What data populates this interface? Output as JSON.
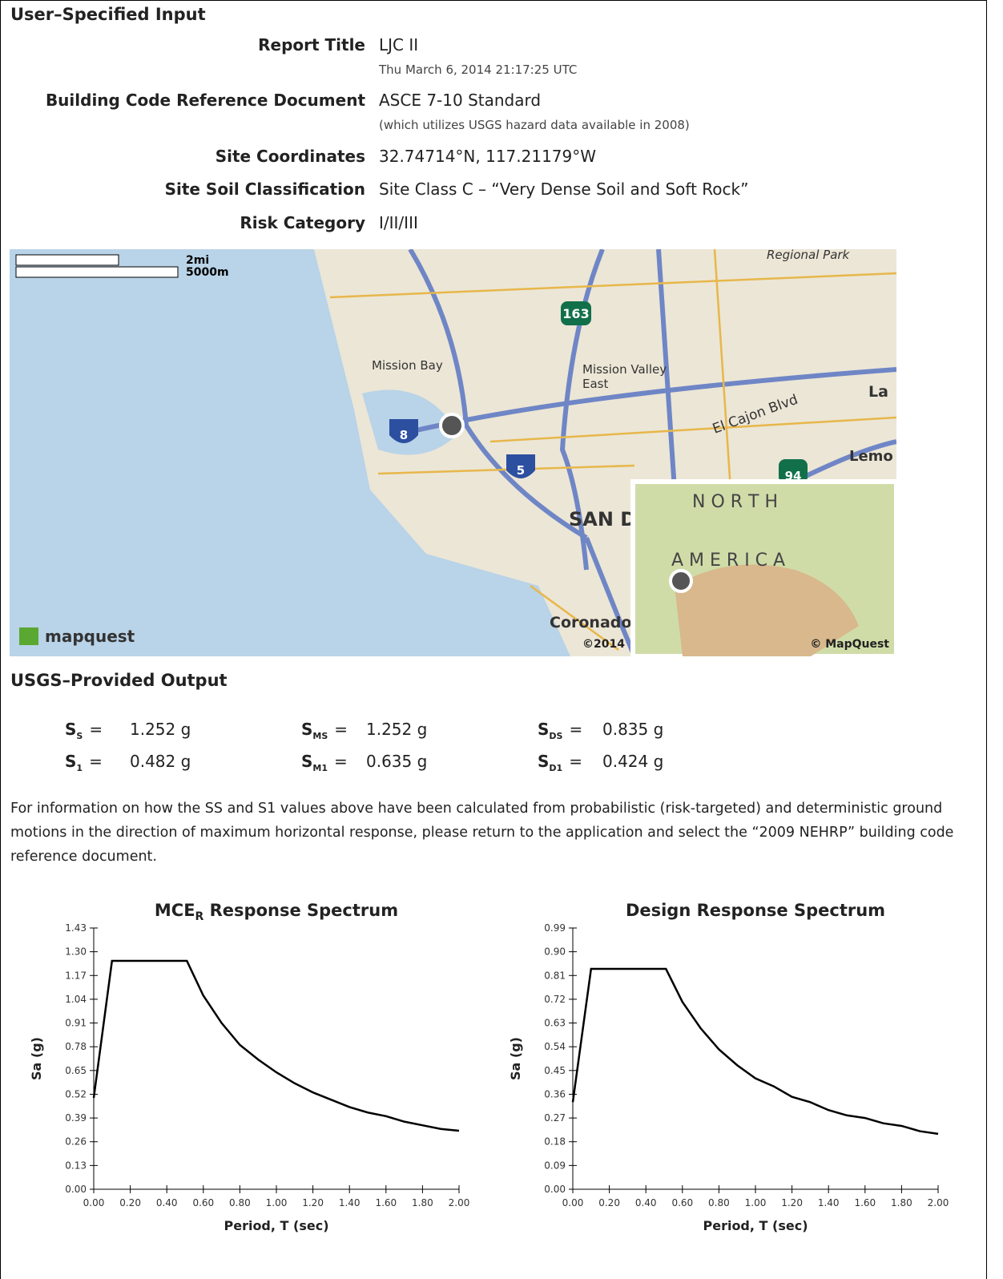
{
  "input": {
    "heading": "User–Specified Input",
    "rows": [
      {
        "label": "Report Title",
        "value": "LJC II",
        "note": "Thu March 6, 2014 21:17:25 UTC"
      },
      {
        "label": "Building Code Reference Document",
        "value": "ASCE 7-10 Standard",
        "note": "(which utilizes USGS hazard data available in 2008)"
      },
      {
        "label": "Site Coordinates",
        "value": "32.74714°N, 117.21179°W"
      },
      {
        "label": "Site Soil Classification",
        "value": "Site Class C – “Very Dense Soil and Soft Rock”"
      },
      {
        "label": "Risk Category",
        "value": "I/II/III"
      }
    ]
  },
  "map": {
    "scale": [
      "2mi",
      "5000m"
    ],
    "labels": [
      "Regional Park",
      "163",
      "Mission Bay",
      "Mission Valley",
      "East",
      "La",
      "El Cajon Blvd",
      "8",
      "5",
      "94",
      "Lemo",
      "SAN D",
      "Coronado",
      "©2014",
      "mapquest"
    ],
    "inset": {
      "labels": [
        "N O R T H",
        "A M E R I C A",
        "© MapQuest"
      ]
    }
  },
  "output": {
    "heading": "USGS–Provided Output",
    "sign": "=",
    "params": [
      {
        "symbol": "S",
        "sub": "S",
        "value": "1.252 g"
      },
      {
        "symbol": "S",
        "sub": "MS",
        "value": "1.252 g"
      },
      {
        "symbol": "S",
        "sub": "DS",
        "value": "0.835 g"
      },
      {
        "symbol": "S",
        "sub": "1",
        "value": "0.482 g"
      },
      {
        "symbol": "S",
        "sub": "M1",
        "value": "0.635 g"
      },
      {
        "symbol": "S",
        "sub": "D1",
        "value": "0.424 g"
      }
    ],
    "note": "For information on how the SS and S1 values above have been calculated from probabilistic (risk-targeted) and deterministic ground motions in the direction of maximum horizontal response, please return to the application and select the “2009 NEHRP” building code reference document."
  },
  "chart_data": [
    {
      "type": "line",
      "title": {
        "main": "MCE",
        "sub": "R",
        "rest": " Response Spectrum"
      },
      "x_label": "Period, T (sec)",
      "y_label": "Sa (g)",
      "color": "#000000",
      "x": [
        0,
        0.1,
        0.51,
        0.6,
        0.7,
        0.8,
        0.9,
        1.0,
        1.1,
        1.2,
        1.3,
        1.4,
        1.5,
        1.6,
        1.7,
        1.8,
        1.9,
        2.0
      ],
      "values": [
        0.5,
        1.25,
        1.25,
        1.06,
        0.91,
        0.79,
        0.71,
        0.64,
        0.58,
        0.53,
        0.49,
        0.45,
        0.42,
        0.4,
        0.37,
        0.35,
        0.33,
        0.32
      ],
      "xlim": [
        0,
        2
      ],
      "ylim": [
        0,
        1.43
      ],
      "xticks": [
        {
          "value": 0,
          "label": "0.00"
        },
        {
          "value": 0.2,
          "label": "0.20"
        },
        {
          "value": 0.4,
          "label": "0.40"
        },
        {
          "value": 0.6,
          "label": "0.60"
        },
        {
          "value": 0.8,
          "label": "0.80"
        },
        {
          "value": 1,
          "label": "1.00"
        },
        {
          "value": 1.2,
          "label": "1.20"
        },
        {
          "value": 1.4,
          "label": "1.40"
        },
        {
          "value": 1.6,
          "label": "1.60"
        },
        {
          "value": 1.8,
          "label": "1.80"
        },
        {
          "value": 2,
          "label": "2.00"
        }
      ],
      "yticks": [
        {
          "value": 0,
          "label": "0.00"
        },
        {
          "value": 0.13,
          "label": "0.13"
        },
        {
          "value": 0.26,
          "label": "0.26"
        },
        {
          "value": 0.39,
          "label": "0.39"
        },
        {
          "value": 0.52,
          "label": "0.52"
        },
        {
          "value": 0.65,
          "label": "0.65"
        },
        {
          "value": 0.78,
          "label": "0.78"
        },
        {
          "value": 0.91,
          "label": "0.91"
        },
        {
          "value": 1.04,
          "label": "1.04"
        },
        {
          "value": 1.17,
          "label": "1.17"
        },
        {
          "value": 1.3,
          "label": "1.30"
        },
        {
          "value": 1.43,
          "label": "1.43"
        }
      ]
    },
    {
      "type": "line",
      "title": {
        "main": "Design Response Spectrum"
      },
      "x_label": "Period, T (sec)",
      "y_label": "Sa (g)",
      "color": "#000000",
      "x": [
        0,
        0.1,
        0.51,
        0.6,
        0.7,
        0.8,
        0.9,
        1.0,
        1.1,
        1.2,
        1.3,
        1.4,
        1.5,
        1.6,
        1.7,
        1.8,
        1.9,
        2.0
      ],
      "values": [
        0.33,
        0.835,
        0.835,
        0.71,
        0.61,
        0.53,
        0.47,
        0.42,
        0.39,
        0.35,
        0.33,
        0.3,
        0.28,
        0.27,
        0.25,
        0.24,
        0.22,
        0.21
      ],
      "xlim": [
        0,
        2
      ],
      "ylim": [
        0,
        0.99
      ],
      "xticks": [
        {
          "value": 0,
          "label": "0.00"
        },
        {
          "value": 0.2,
          "label": "0.20"
        },
        {
          "value": 0.4,
          "label": "0.40"
        },
        {
          "value": 0.6,
          "label": "0.60"
        },
        {
          "value": 0.8,
          "label": "0.80"
        },
        {
          "value": 1,
          "label": "1.00"
        },
        {
          "value": 1.2,
          "label": "1.20"
        },
        {
          "value": 1.4,
          "label": "1.40"
        },
        {
          "value": 1.6,
          "label": "1.60"
        },
        {
          "value": 1.8,
          "label": "1.80"
        },
        {
          "value": 2,
          "label": "2.00"
        }
      ],
      "yticks": [
        {
          "value": 0,
          "label": "0.00"
        },
        {
          "value": 0.09,
          "label": "0.09"
        },
        {
          "value": 0.18,
          "label": "0.18"
        },
        {
          "value": 0.27,
          "label": "0.27"
        },
        {
          "value": 0.36,
          "label": "0.36"
        },
        {
          "value": 0.45,
          "label": "0.45"
        },
        {
          "value": 0.54,
          "label": "0.54"
        },
        {
          "value": 0.63,
          "label": "0.63"
        },
        {
          "value": 0.72,
          "label": "0.72"
        },
        {
          "value": 0.81,
          "label": "0.81"
        },
        {
          "value": 0.9,
          "label": "0.90"
        },
        {
          "value": 0.99,
          "label": "0.99"
        }
      ]
    }
  ]
}
